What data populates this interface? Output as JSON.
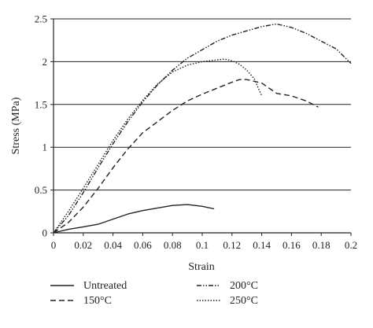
{
  "chart_data": {
    "type": "line",
    "xlabel": "Strain",
    "ylabel": "Stress (MPa)",
    "xlim": [
      0,
      0.2
    ],
    "ylim": [
      0,
      2.5
    ],
    "x_ticks": [
      0,
      0.02,
      0.04,
      0.06,
      0.08,
      0.1,
      0.12,
      0.14,
      0.16,
      0.18,
      0.2
    ],
    "y_ticks": [
      0,
      0.5,
      1,
      1.5,
      2,
      2.5
    ],
    "x_tick_labels": [
      "0",
      "0.02",
      "0.04",
      "0.06",
      "0.08",
      "0.1",
      "0.12",
      "0.14",
      "0.16",
      "0.18",
      "0.2"
    ],
    "y_tick_labels": [
      "0",
      "0.5",
      "1",
      "1.5",
      "2",
      "2.5"
    ],
    "grid": "horizontal",
    "legend_position": "bottom",
    "series": [
      {
        "name": "Untreated",
        "style": "solid",
        "x": [
          0,
          0.01,
          0.02,
          0.03,
          0.04,
          0.05,
          0.06,
          0.07,
          0.08,
          0.09,
          0.1,
          0.108
        ],
        "y": [
          0,
          0.04,
          0.07,
          0.1,
          0.16,
          0.22,
          0.26,
          0.29,
          0.32,
          0.33,
          0.31,
          0.28
        ]
      },
      {
        "name": "150°C",
        "style": "dashed",
        "x": [
          0,
          0.01,
          0.02,
          0.03,
          0.04,
          0.05,
          0.06,
          0.07,
          0.08,
          0.09,
          0.1,
          0.11,
          0.12,
          0.125,
          0.13,
          0.14,
          0.15,
          0.16,
          0.17,
          0.178
        ],
        "y": [
          0,
          0.12,
          0.3,
          0.52,
          0.76,
          0.98,
          1.17,
          1.3,
          1.43,
          1.54,
          1.62,
          1.69,
          1.76,
          1.79,
          1.79,
          1.75,
          1.63,
          1.6,
          1.54,
          1.47
        ]
      },
      {
        "name": "200°C",
        "style": "dash-dot-dot",
        "x": [
          0,
          0.01,
          0.02,
          0.03,
          0.04,
          0.05,
          0.06,
          0.07,
          0.08,
          0.09,
          0.1,
          0.11,
          0.12,
          0.13,
          0.14,
          0.15,
          0.16,
          0.17,
          0.18,
          0.19,
          0.2
        ],
        "y": [
          0,
          0.2,
          0.47,
          0.76,
          1.04,
          1.3,
          1.53,
          1.73,
          1.9,
          2.04,
          2.14,
          2.24,
          2.31,
          2.36,
          2.41,
          2.44,
          2.4,
          2.33,
          2.24,
          2.15,
          1.98
        ]
      },
      {
        "name": "250°C",
        "style": "dotted",
        "x": [
          0,
          0.01,
          0.02,
          0.03,
          0.04,
          0.05,
          0.06,
          0.07,
          0.08,
          0.09,
          0.1,
          0.11,
          0.115,
          0.12,
          0.125,
          0.13,
          0.135,
          0.14
        ],
        "y": [
          0,
          0.25,
          0.52,
          0.8,
          1.08,
          1.33,
          1.55,
          1.74,
          1.88,
          1.96,
          2.0,
          2.02,
          2.03,
          2.01,
          1.97,
          1.9,
          1.8,
          1.6
        ]
      }
    ]
  }
}
